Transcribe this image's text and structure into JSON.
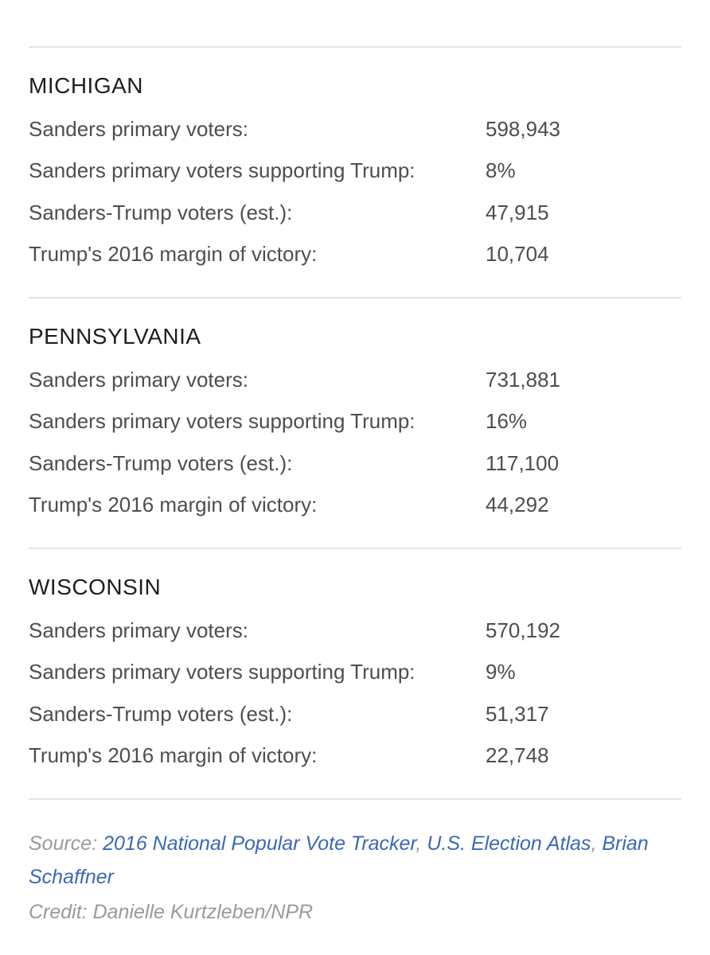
{
  "sections": [
    {
      "state": "MICHIGAN",
      "rows": [
        {
          "label": "Sanders primary voters:",
          "value": "598,943"
        },
        {
          "label": "Sanders primary voters supporting Trump:",
          "value": "8%"
        },
        {
          "label": "Sanders-Trump voters (est.):",
          "value": "47,915"
        },
        {
          "label": "Trump's 2016 margin of victory:",
          "value": "10,704"
        }
      ]
    },
    {
      "state": "PENNSYLVANIA",
      "rows": [
        {
          "label": "Sanders primary voters:",
          "value": "731,881"
        },
        {
          "label": "Sanders primary voters supporting Trump:",
          "value": "16%"
        },
        {
          "label": "Sanders-Trump voters (est.):",
          "value": "117,100"
        },
        {
          "label": "Trump's 2016 margin of victory:",
          "value": "44,292"
        }
      ]
    },
    {
      "state": "WISCONSIN",
      "rows": [
        {
          "label": "Sanders primary voters:",
          "value": "570,192"
        },
        {
          "label": "Sanders primary voters supporting Trump:",
          "value": "9%"
        },
        {
          "label": "Sanders-Trump voters (est.):",
          "value": "51,317"
        },
        {
          "label": "Trump's 2016 margin of victory:",
          "value": "22,748"
        }
      ]
    }
  ],
  "footer": {
    "source_prefix": "Source:",
    "links": [
      "2016 National Popular Vote Tracker",
      "U.S. Election Atlas",
      "Brian Schaffner"
    ],
    "separator": ",",
    "credit": "Credit: Danielle Kurtzleben/NPR"
  },
  "colors": {
    "heading": "#1e1e1e",
    "text": "#4e4e4e",
    "muted": "#9a9a9a",
    "link": "#3a68b6",
    "divider": "#e3e3e3"
  }
}
